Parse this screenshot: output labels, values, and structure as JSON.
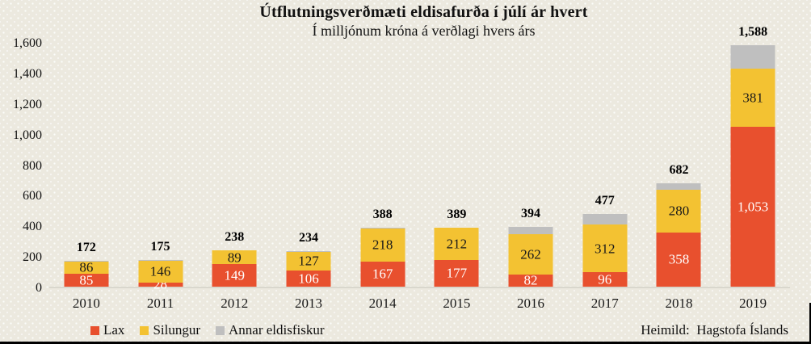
{
  "header": {
    "title": "Útflutningsverðmæti eldisafurða í júlí ár hvert",
    "subtitle": "Í milljónum króna á verðlagi hvers árs"
  },
  "source": "Heimild:  Hagstofa Íslands",
  "colors": {
    "background": "#ece9df",
    "lax_red": "#e8502e",
    "silungur_yellow": "#f3c232",
    "annar_gray": "#bfbfbf",
    "axis_line": "#d9d7cd",
    "border_black": "#000000"
  },
  "chart_data": {
    "type": "bar",
    "stacked": true,
    "title": "Útflutningsverðmæti eldisafurða í júlí ár hvert",
    "subtitle": "Í milljónum króna á verðlagi hvers árs",
    "categories": [
      "2010",
      "2011",
      "2012",
      "2013",
      "2014",
      "2015",
      "2016",
      "2017",
      "2018",
      "2019"
    ],
    "series": [
      {
        "name": "Lax",
        "color": "#e8502e",
        "label_color": "#ffffff",
        "show_labels": true,
        "values": [
          85,
          28,
          149,
          106,
          167,
          177,
          82,
          96,
          358,
          1053
        ]
      },
      {
        "name": "Silungur",
        "color": "#f3c232",
        "label_color": "#1a1a1a",
        "show_labels": true,
        "values": [
          86,
          146,
          89,
          127,
          218,
          212,
          262,
          312,
          280,
          381
        ]
      },
      {
        "name": "Annar eldisfiskur",
        "color": "#bfbfbf",
        "label_color": "#1a1a1a",
        "show_labels": false,
        "values": [
          1,
          1,
          0,
          1,
          3,
          0,
          50,
          69,
          44,
          154
        ]
      }
    ],
    "totals": [
      172,
      175,
      238,
      234,
      388,
      389,
      394,
      477,
      682,
      1588
    ],
    "ylim": [
      0,
      1600
    ],
    "ytick_step": 200,
    "ytick_labels": [
      "0",
      "200",
      "400",
      "600",
      "800",
      "1,000",
      "1,200",
      "1,400",
      "1,600"
    ],
    "grid": false,
    "legend_position": "bottom-left",
    "legend_entries": [
      "Lax",
      "Silungur",
      "Annar eldisfiskur"
    ]
  }
}
